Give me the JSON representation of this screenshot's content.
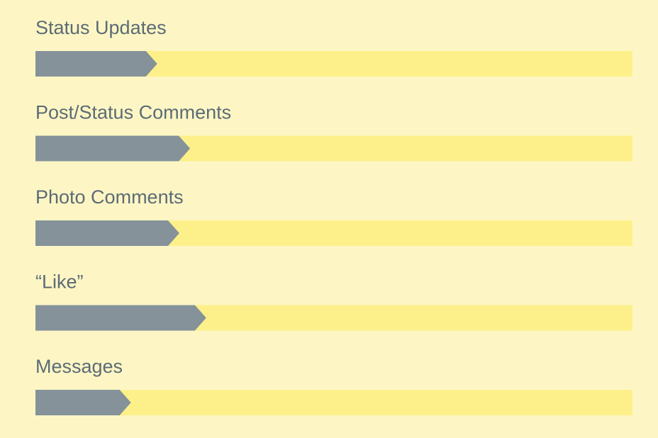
{
  "chart_data": {
    "type": "bar",
    "orientation": "horizontal",
    "categories": [
      "Status Updates",
      "Post/Status Comments",
      "Photo Comments",
      "“Like”",
      "Messages"
    ],
    "values": [
      20.4,
      25.9,
      24.1,
      28.6,
      16.0
    ],
    "color": "#85929a",
    "track_color": "#fdf08a",
    "xlim": [
      0,
      100
    ]
  }
}
